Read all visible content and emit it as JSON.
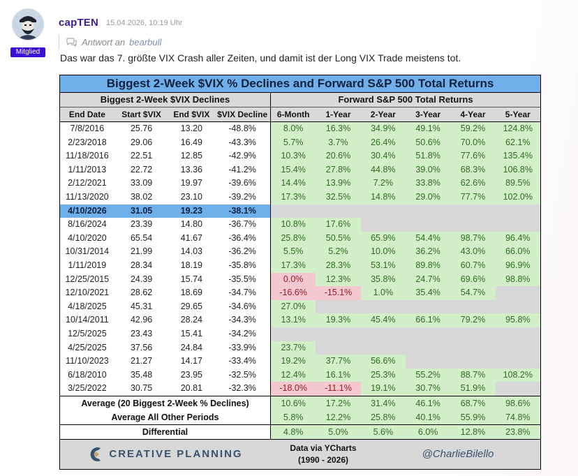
{
  "post": {
    "author": "capTEN",
    "timestamp": "15.04.2026, 10:19 Uhr",
    "role_badge": "Mitglied",
    "reply_prefix": "Antwort an",
    "reply_to": "bearbull",
    "text": "Das war das 7. größte VIX Crash aller Zeiten, und damit ist der Long VIX Trade meistens tot."
  },
  "table": {
    "title": "Biggest 2-Week $VIX % Declines and Forward S&P 500 Total Returns",
    "left_header": "Biggest 2-Week $VIX Declines",
    "right_header": "Forward S&P 500 Total Returns",
    "left_columns": [
      "End Date",
      "Start $VIX",
      "End $VIX",
      "$VIX Decline"
    ],
    "right_columns": [
      "6-Month",
      "1-Year",
      "2-Year",
      "3-Year",
      "4-Year",
      "5-Year"
    ],
    "rows": [
      {
        "date": "7/8/2016",
        "start": "25.76",
        "end": "13.20",
        "decline": "-48.8%",
        "fwd": [
          "8.0%",
          "16.3%",
          "34.9%",
          "49.1%",
          "59.2%",
          "124.8%"
        ]
      },
      {
        "date": "2/23/2018",
        "start": "29.06",
        "end": "16.49",
        "decline": "-43.3%",
        "fwd": [
          "5.7%",
          "3.7%",
          "26.4%",
          "50.6%",
          "70.0%",
          "62.1%"
        ]
      },
      {
        "date": "11/18/2016",
        "start": "22.51",
        "end": "12.85",
        "decline": "-42.9%",
        "fwd": [
          "10.3%",
          "20.6%",
          "30.4%",
          "51.8%",
          "77.6%",
          "135.4%"
        ]
      },
      {
        "date": "1/11/2013",
        "start": "22.72",
        "end": "13.36",
        "decline": "-41.2%",
        "fwd": [
          "15.4%",
          "27.8%",
          "44.8%",
          "39.0%",
          "68.3%",
          "106.8%"
        ]
      },
      {
        "date": "2/12/2021",
        "start": "33.09",
        "end": "19.97",
        "decline": "-39.6%",
        "fwd": [
          "14.4%",
          "13.9%",
          "7.2%",
          "33.8%",
          "62.6%",
          "89.5%"
        ]
      },
      {
        "date": "11/13/2020",
        "start": "38.02",
        "end": "23.10",
        "decline": "-39.2%",
        "fwd": [
          "17.3%",
          "32.5%",
          "14.8%",
          "29.0%",
          "77.7%",
          "102.0%"
        ]
      },
      {
        "date": "4/10/2026",
        "start": "31.05",
        "end": "19.23",
        "decline": "-38.1%",
        "fwd": [],
        "highlight": true
      },
      {
        "date": "8/16/2024",
        "start": "23.39",
        "end": "14.80",
        "decline": "-36.7%",
        "fwd": [
          "10.8%",
          "17.6%"
        ]
      },
      {
        "date": "4/10/2020",
        "start": "65.54",
        "end": "41.67",
        "decline": "-36.4%",
        "fwd": [
          "25.8%",
          "50.5%",
          "65.9%",
          "54.4%",
          "98.7%",
          "96.4%"
        ]
      },
      {
        "date": "10/31/2014",
        "start": "21.99",
        "end": "14.03",
        "decline": "-36.2%",
        "fwd": [
          "5.5%",
          "5.2%",
          "10.0%",
          "36.2%",
          "43.0%",
          "66.0%"
        ]
      },
      {
        "date": "1/11/2019",
        "start": "28.34",
        "end": "18.19",
        "decline": "-35.8%",
        "fwd": [
          "17.3%",
          "28.3%",
          "53.1%",
          "89.8%",
          "60.7%",
          "96.9%"
        ]
      },
      {
        "date": "12/25/2015",
        "start": "24.39",
        "end": "15.74",
        "decline": "-35.5%",
        "fwd": [
          "0.0%",
          "12.3%",
          "35.8%",
          "24.7%",
          "69.6%",
          "98.8%"
        ]
      },
      {
        "date": "12/10/2021",
        "start": "28.62",
        "end": "18.69",
        "decline": "-34.7%",
        "fwd": [
          "-16.6%",
          "-15.1%",
          "1.0%",
          "35.4%",
          "54.7%"
        ]
      },
      {
        "date": "4/18/2025",
        "start": "45.31",
        "end": "29.65",
        "decline": "-34.6%",
        "fwd": [
          "27.0%"
        ]
      },
      {
        "date": "10/14/2011",
        "start": "42.96",
        "end": "28.24",
        "decline": "-34.3%",
        "fwd": [
          "13.1%",
          "19.3%",
          "45.4%",
          "66.1%",
          "79.2%",
          "95.8%"
        ]
      },
      {
        "date": "12/5/2025",
        "start": "23.43",
        "end": "15.41",
        "decline": "-34.2%",
        "fwd": []
      },
      {
        "date": "4/25/2025",
        "start": "37.56",
        "end": "24.84",
        "decline": "-33.9%",
        "fwd": [
          "23.7%"
        ]
      },
      {
        "date": "11/10/2023",
        "start": "21.27",
        "end": "14.17",
        "decline": "-33.4%",
        "fwd": [
          "19.2%",
          "37.7%",
          "56.6%"
        ]
      },
      {
        "date": "6/18/2010",
        "start": "35.48",
        "end": "23.95",
        "decline": "-32.5%",
        "fwd": [
          "12.4%",
          "16.1%",
          "25.3%",
          "55.2%",
          "88.7%",
          "108.2%"
        ]
      },
      {
        "date": "3/25/2022",
        "start": "30.75",
        "end": "20.81",
        "decline": "-32.3%",
        "fwd": [
          "-18.0%",
          "-11.1%",
          "19.1%",
          "30.7%",
          "51.9%"
        ]
      }
    ],
    "summary": [
      {
        "label": "Average (20 Biggest 2-Week % Declines)",
        "values": [
          "10.6%",
          "17.2%",
          "31.4%",
          "46.1%",
          "68.7%",
          "98.6%"
        ]
      },
      {
        "label": "Average All Other Periods",
        "values": [
          "5.8%",
          "12.2%",
          "25.8%",
          "40.1%",
          "55.9%",
          "74.8%"
        ]
      }
    ],
    "differential": {
      "label": "Differential",
      "values": [
        "4.8%",
        "5.0%",
        "5.6%",
        "6.0%",
        "12.8%",
        "23.8%"
      ]
    },
    "footer": {
      "brand": "CREATIVE PLANNING",
      "source_line1": "Data via YCharts",
      "source_line2": "(1990 - 2026)",
      "handle": "@CharlieBilello"
    },
    "colors": {
      "positive_bg": "#d3efc9",
      "negative_bg": "#f3c8cf",
      "highlight": "#6fb0ea",
      "empty": "#d8d8d8"
    }
  }
}
